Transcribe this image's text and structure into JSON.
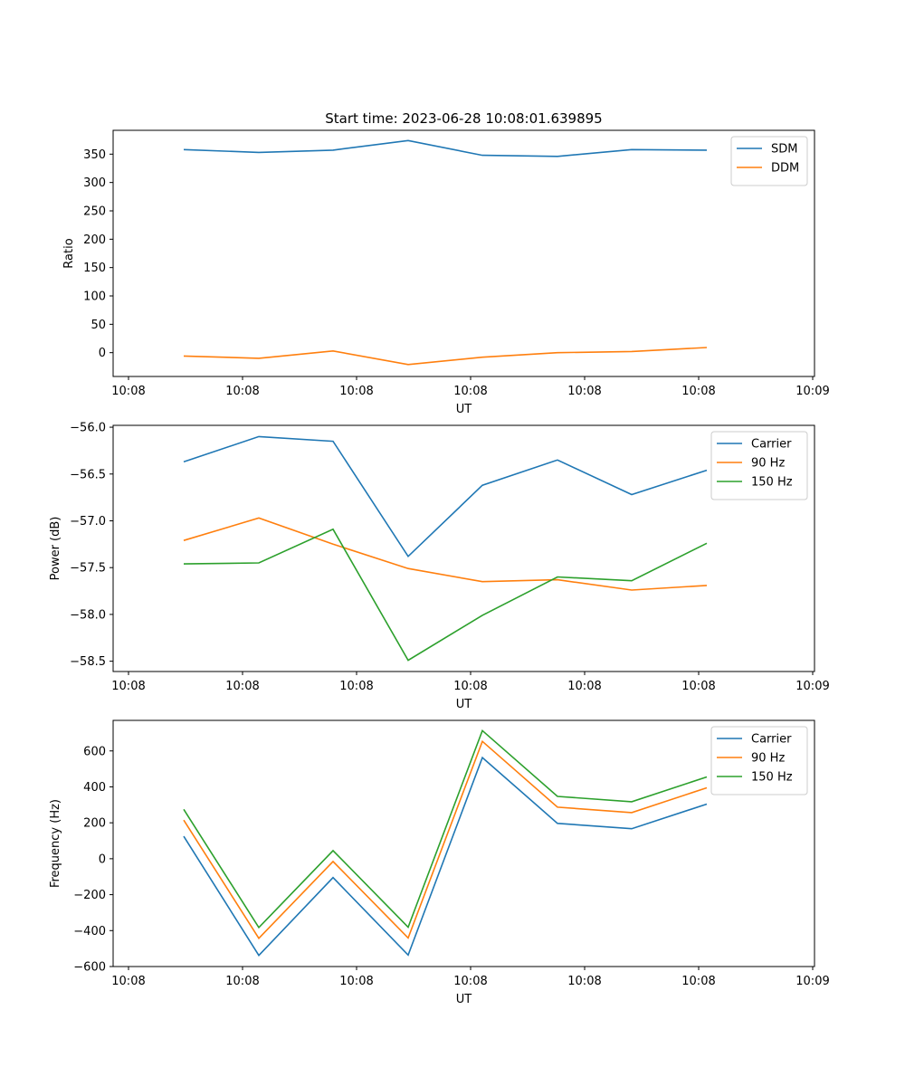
{
  "chart_data": [
    {
      "type": "line",
      "title": "Start time: 2023-06-28 10:08:01.639895",
      "xlabel": "UT",
      "ylabel": "Ratio",
      "x_tick_labels": [
        "10:08",
        "10:08",
        "10:08",
        "10:08",
        "10:08",
        "10:08",
        "10:08",
        "10:09"
      ],
      "y_ticks": [
        0,
        50,
        100,
        150,
        200,
        250,
        300,
        350
      ],
      "ylim": [
        -42,
        392
      ],
      "grid": false,
      "legend_position": "top-right",
      "series": [
        {
          "name": "SDM",
          "color": "#1f77b4",
          "values": [
            358,
            353,
            357,
            374,
            348,
            346,
            358,
            357
          ]
        },
        {
          "name": "DDM",
          "color": "#ff7f0e",
          "values": [
            -6,
            -10,
            3,
            -21,
            -8,
            0,
            2,
            9
          ]
        }
      ]
    },
    {
      "type": "line",
      "title": "",
      "xlabel": "UT",
      "ylabel": "Power (dB)",
      "x_tick_labels": [
        "10:08",
        "10:08",
        "10:08",
        "10:08",
        "10:08",
        "10:08",
        "10:08",
        "10:09"
      ],
      "y_ticks": [
        -58.5,
        -58.0,
        -57.5,
        -57.0,
        -56.5,
        -56.0
      ],
      "y_tick_labels": [
        "−58.5",
        "−58.0",
        "−57.5",
        "−57.0",
        "−56.5",
        "−56.0"
      ],
      "ylim": [
        -58.61,
        -55.98
      ],
      "grid": false,
      "legend_position": "top-right",
      "series": [
        {
          "name": "Carrier",
          "color": "#1f77b4",
          "values": [
            -56.37,
            -56.1,
            -56.15,
            -57.38,
            -56.62,
            -56.35,
            -56.72,
            -56.46
          ]
        },
        {
          "name": "90 Hz",
          "color": "#ff7f0e",
          "values": [
            -57.21,
            -56.97,
            -57.25,
            -57.51,
            -57.65,
            -57.63,
            -57.74,
            -57.69
          ]
        },
        {
          "name": "150 Hz",
          "color": "#2ca02c",
          "values": [
            -57.46,
            -57.45,
            -57.09,
            -58.49,
            -58.01,
            -57.6,
            -57.64,
            -57.24
          ]
        }
      ]
    },
    {
      "type": "line",
      "title": "",
      "xlabel": "UT",
      "ylabel": "Frequency (Hz)",
      "x_tick_labels": [
        "10:08",
        "10:08",
        "10:08",
        "10:08",
        "10:08",
        "10:08",
        "10:08",
        "10:09"
      ],
      "y_ticks": [
        -600,
        -400,
        -200,
        0,
        200,
        400,
        600
      ],
      "y_tick_labels": [
        "−600",
        "−400",
        "−200",
        "0",
        "200",
        "400",
        "600"
      ],
      "ylim": [
        -600,
        770
      ],
      "grid": false,
      "legend_position": "top-right",
      "series": [
        {
          "name": "Carrier",
          "color": "#1f77b4",
          "values": [
            125,
            -538,
            -105,
            -536,
            563,
            197,
            167,
            304
          ]
        },
        {
          "name": "90 Hz",
          "color": "#ff7f0e",
          "values": [
            215,
            -443,
            -15,
            -441,
            653,
            287,
            257,
            395
          ]
        },
        {
          "name": "150 Hz",
          "color": "#2ca02c",
          "values": [
            275,
            -383,
            45,
            -381,
            713,
            347,
            317,
            455
          ]
        }
      ]
    }
  ]
}
